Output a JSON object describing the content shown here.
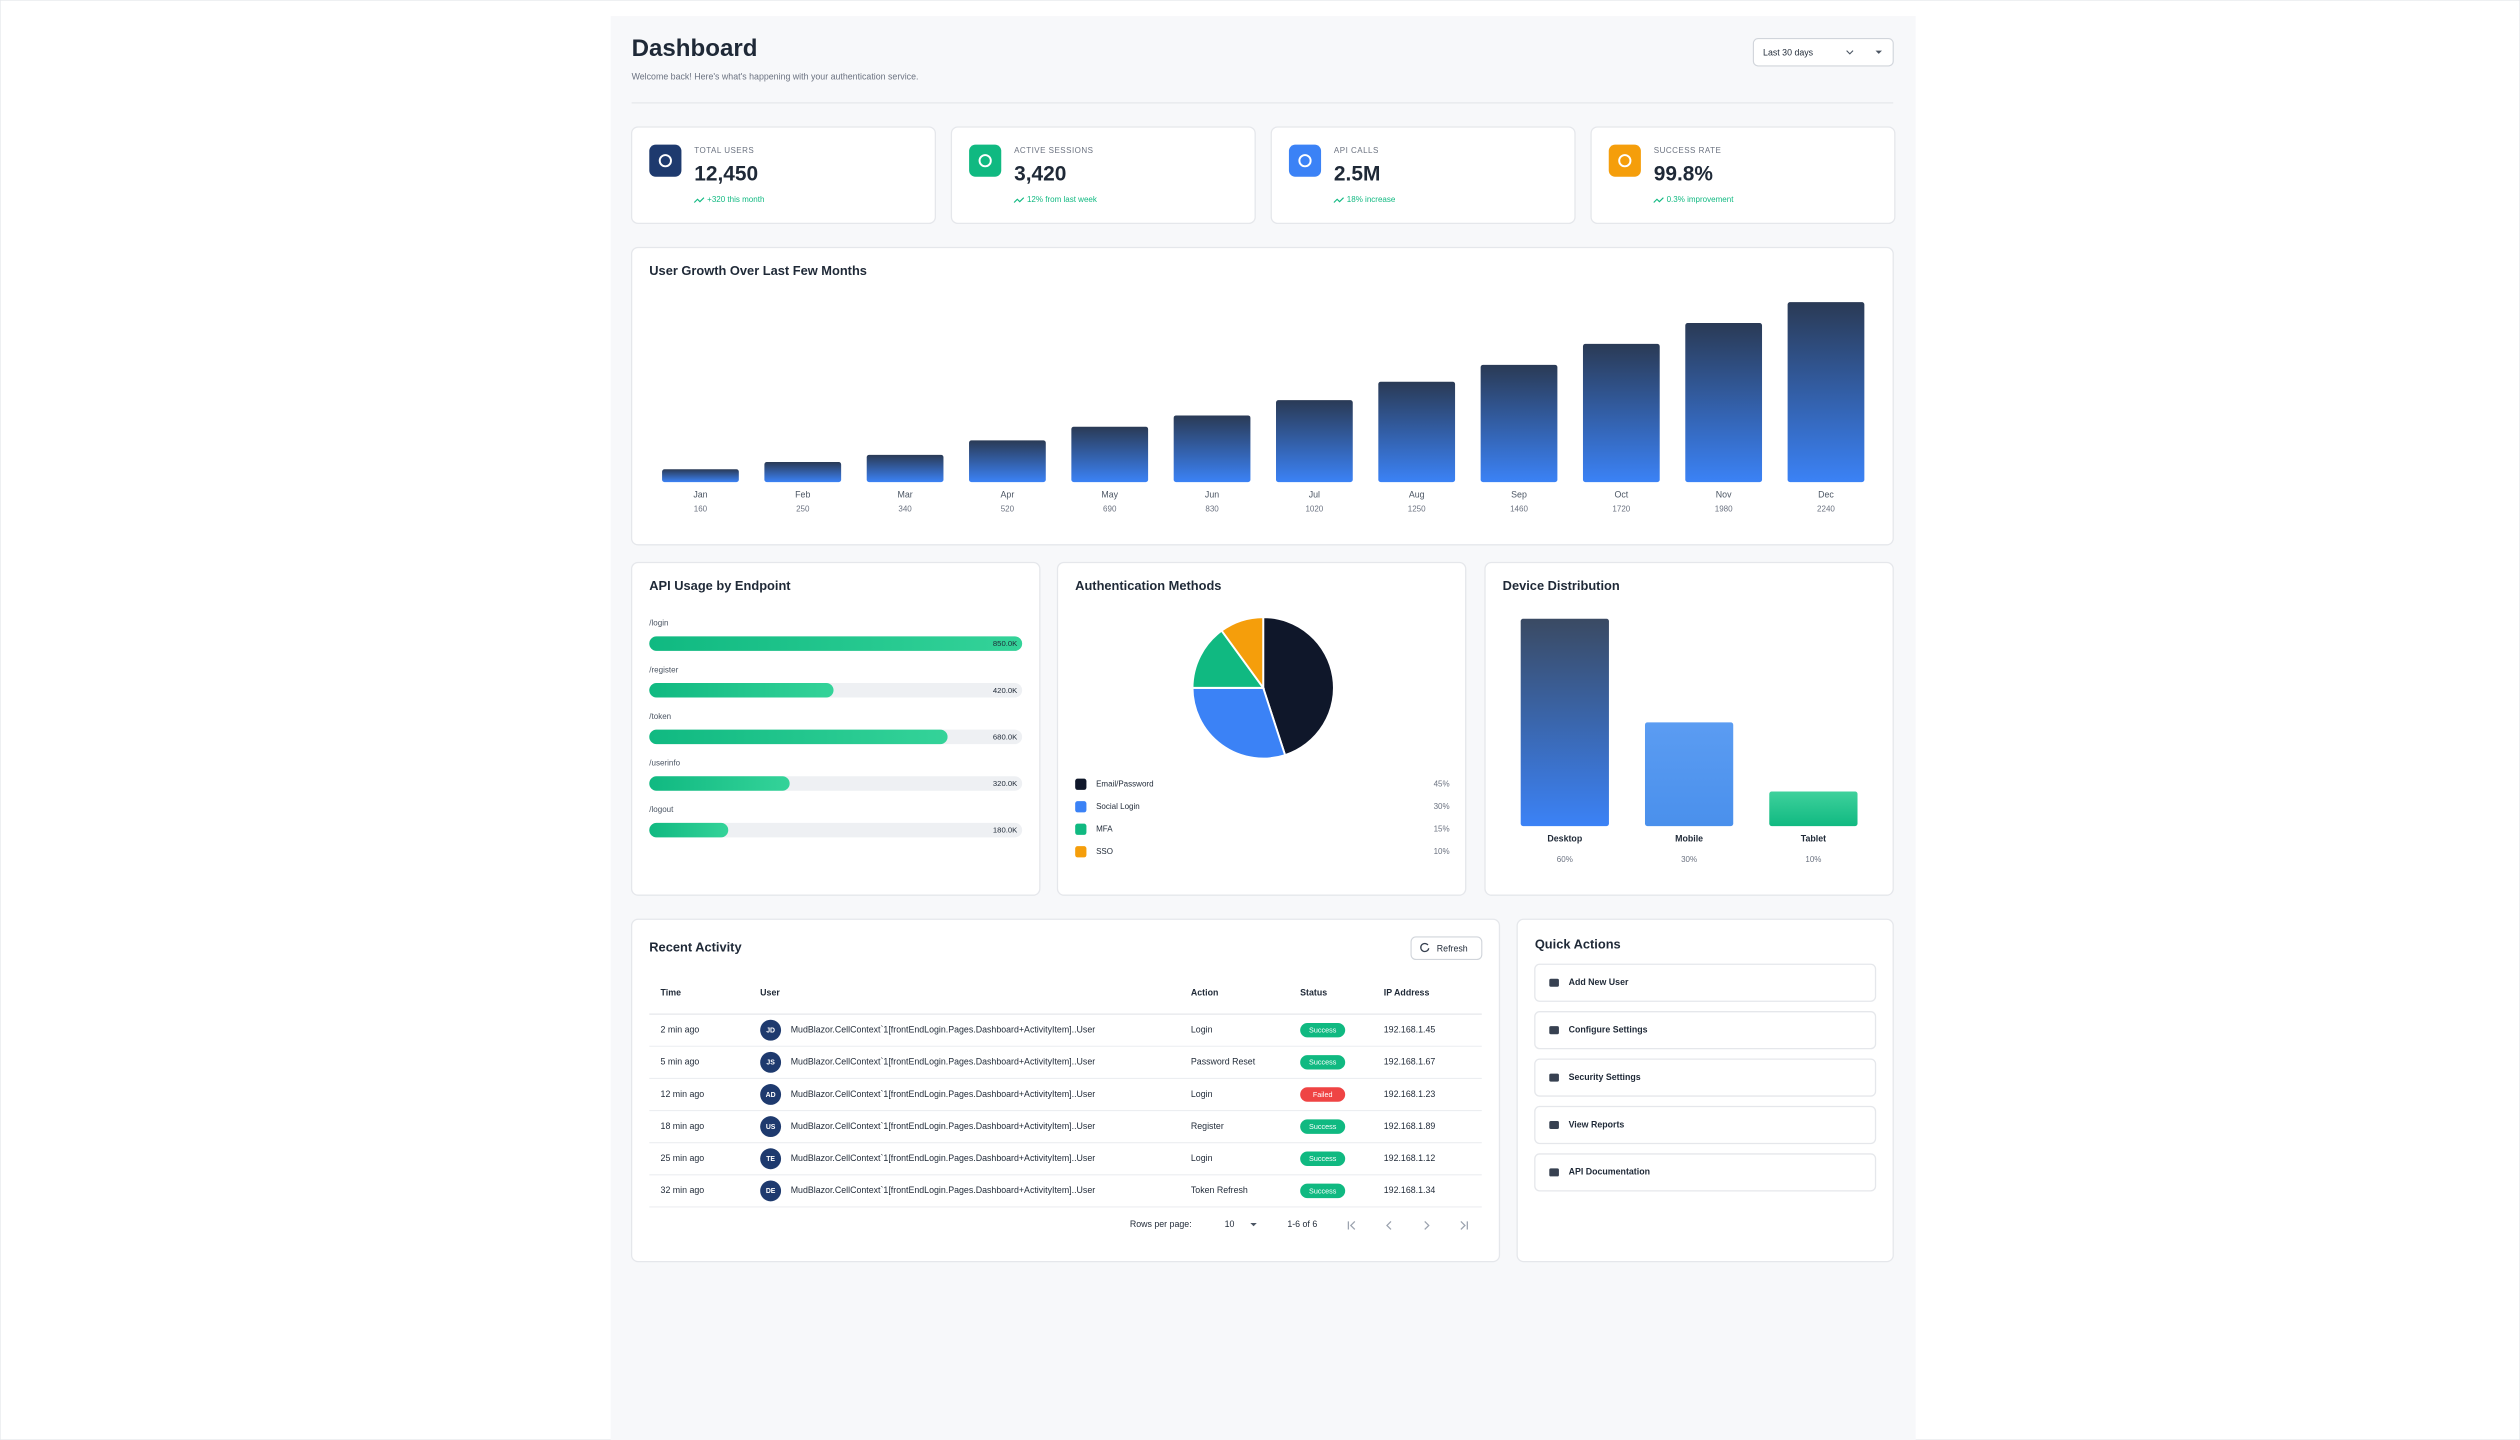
{
  "header": {
    "title": "Dashboard",
    "subtitle": "Welcome back! Here's what's happening with your authentication service.",
    "range": "Last 30 days"
  },
  "stats": [
    {
      "label": "TOTAL USERS",
      "value": "12,450",
      "change": "+320 this month",
      "icon_color": "#1e3a6e"
    },
    {
      "label": "ACTIVE SESSIONS",
      "value": "3,420",
      "change": "12% from last week",
      "icon_color": "#10b981"
    },
    {
      "label": "API CALLS",
      "value": "2.5M",
      "change": "18% increase",
      "icon_color": "#3b82f6"
    },
    {
      "label": "SUCCESS RATE",
      "value": "99.8%",
      "change": "0.3% improvement",
      "icon_color": "#f59e0b"
    }
  ],
  "chart_data": [
    {
      "type": "bar",
      "title": "User Growth Over Last Few Months",
      "categories": [
        "Jan",
        "Feb",
        "Mar",
        "Apr",
        "May",
        "Jun",
        "Jul",
        "Aug",
        "Sep",
        "Oct",
        "Nov",
        "Dec"
      ],
      "values": [
        160,
        250,
        340,
        520,
        690,
        830,
        1020,
        1250,
        1460,
        1720,
        1980,
        2240
      ],
      "color": [
        "#2a3a55",
        "#3b82f6"
      ]
    },
    {
      "type": "hbar",
      "title": "API Usage by Endpoint",
      "categories": [
        "/login",
        "/register",
        "/token",
        "/userinfo",
        "/logout"
      ],
      "values": [
        850000,
        420000,
        680000,
        320000,
        180000
      ],
      "value_labels": [
        "850.0K",
        "420.0K",
        "680.0K",
        "320.0K",
        "180.0K"
      ],
      "color": [
        "#10b981",
        "#34d399"
      ]
    },
    {
      "type": "pie",
      "title": "Authentication Methods",
      "categories": [
        "Email/Password",
        "Social Login",
        "MFA",
        "SSO"
      ],
      "values": [
        45,
        30,
        15,
        10
      ],
      "value_labels": [
        "45%",
        "30%",
        "15%",
        "10%"
      ],
      "colors": [
        "#0f172a",
        "#3b82f6",
        "#10b981",
        "#f59e0b"
      ]
    },
    {
      "type": "bar",
      "title": "Device Distribution",
      "categories": [
        "Desktop",
        "Mobile",
        "Tablet"
      ],
      "values": [
        60,
        30,
        10
      ],
      "value_labels": [
        "60%",
        "30%",
        "10%"
      ],
      "colors": [
        [
          "#3a4a63",
          "#3b82f6"
        ],
        [
          "#5b9cf2",
          "#4a90ec"
        ],
        [
          "#3fd19c",
          "#10b981"
        ]
      ]
    }
  ],
  "activity": {
    "title": "Recent Activity",
    "refresh": "Refresh",
    "columns": [
      "Time",
      "User",
      "Action",
      "Status",
      "IP Address"
    ],
    "rows": [
      {
        "time": "2 min ago",
        "initials": "JD",
        "user": "MudBlazor.CellContext`1[frontEndLogin.Pages.Dashboard+ActivityItem]..User",
        "action": "Login",
        "status": "Success",
        "status_color": "#10b981",
        "ip": "192.168.1.45"
      },
      {
        "time": "5 min ago",
        "initials": "JS",
        "user": "MudBlazor.CellContext`1[frontEndLogin.Pages.Dashboard+ActivityItem]..User",
        "action": "Password Reset",
        "status": "Success",
        "status_color": "#10b981",
        "ip": "192.168.1.67"
      },
      {
        "time": "12 min ago",
        "initials": "AD",
        "user": "MudBlazor.CellContext`1[frontEndLogin.Pages.Dashboard+ActivityItem]..User",
        "action": "Login",
        "status": "Failed",
        "status_color": "#ef4444",
        "ip": "192.168.1.23"
      },
      {
        "time": "18 min ago",
        "initials": "US",
        "user": "MudBlazor.CellContext`1[frontEndLogin.Pages.Dashboard+ActivityItem]..User",
        "action": "Register",
        "status": "Success",
        "status_color": "#10b981",
        "ip": "192.168.1.89"
      },
      {
        "time": "25 min ago",
        "initials": "TE",
        "user": "MudBlazor.CellContext`1[frontEndLogin.Pages.Dashboard+ActivityItem]..User",
        "action": "Login",
        "status": "Success",
        "status_color": "#10b981",
        "ip": "192.168.1.12"
      },
      {
        "time": "32 min ago",
        "initials": "DE",
        "user": "MudBlazor.CellContext`1[frontEndLogin.Pages.Dashboard+ActivityItem]..User",
        "action": "Token Refresh",
        "status": "Success",
        "status_color": "#10b981",
        "ip": "192.168.1.34"
      }
    ],
    "rows_per_page_label": "Rows per page:",
    "rows_per_page": 10,
    "range": "1-6 of 6"
  },
  "quick_actions": {
    "title": "Quick Actions",
    "items": [
      "Add New User",
      "Configure Settings",
      "Security Settings",
      "View Reports",
      "API Documentation"
    ]
  }
}
